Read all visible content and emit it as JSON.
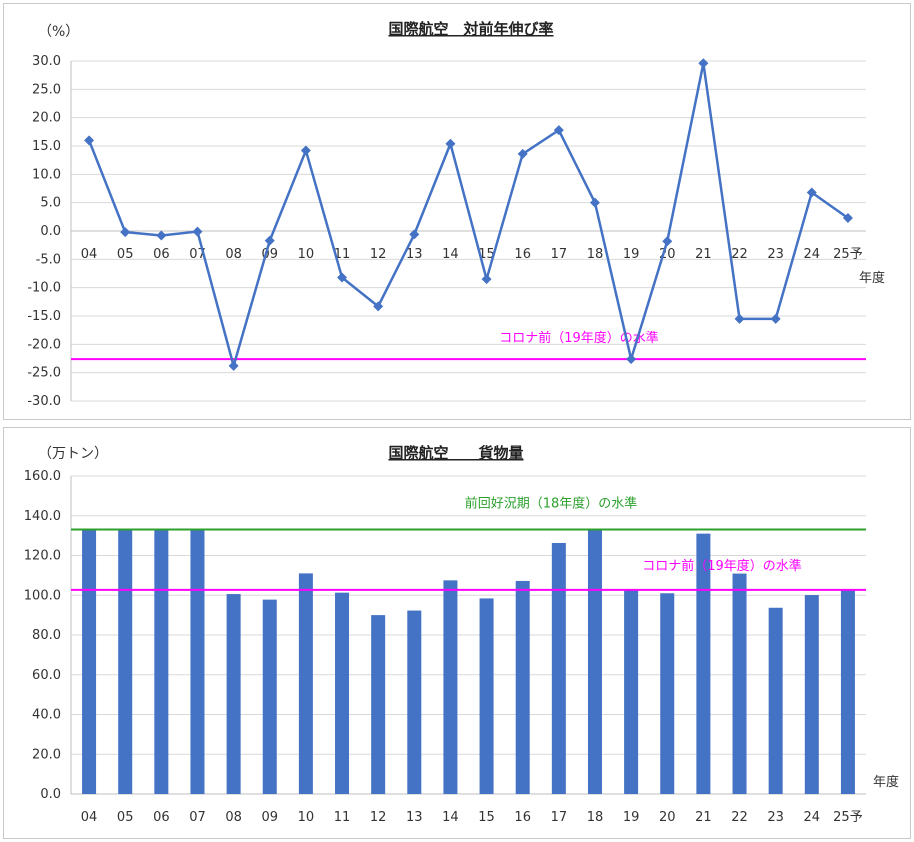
{
  "chart_data": [
    {
      "type": "line",
      "title": "国際航空　対前年伸び率",
      "ylabel": "（%）",
      "xlabel": "年度",
      "categories": [
        "04",
        "05",
        "06",
        "07",
        "08",
        "09",
        "10",
        "11",
        "12",
        "13",
        "14",
        "15",
        "16",
        "17",
        "18",
        "19",
        "20",
        "21",
        "22",
        "23",
        "24",
        "25予"
      ],
      "series": [
        {
          "values": [
            16.0,
            -0.2,
            -0.8,
            -0.1,
            -23.8,
            -1.7,
            14.2,
            -8.2,
            -13.3,
            -0.6,
            15.4,
            -8.5,
            13.6,
            17.8,
            5.0,
            -22.6,
            -1.8,
            29.6,
            -15.5,
            -15.5,
            6.8,
            2.3
          ],
          "color": "#4472c4"
        }
      ],
      "ylim": [
        -30,
        30
      ],
      "yticks": [
        "30.0",
        "25.0",
        "20.0",
        "15.0",
        "10.0",
        "5.0",
        "0.0",
        "-5.0",
        "-10.0",
        "-15.0",
        "-20.0",
        "-25.0",
        "-30.0"
      ],
      "grid": true,
      "reference_lines": [
        {
          "label": "コロナ前（19年度）の水準",
          "value": -22.6,
          "color": "#ff00ff"
        }
      ]
    },
    {
      "type": "bar",
      "title": "国際航空　　貨物量",
      "ylabel": "（万トン）",
      "xlabel": "年度",
      "categories": [
        "04",
        "05",
        "06",
        "07",
        "08",
        "09",
        "10",
        "11",
        "12",
        "13",
        "14",
        "15",
        "16",
        "17",
        "18",
        "19",
        "20",
        "21",
        "22",
        "23",
        "24",
        "25予"
      ],
      "series": [
        {
          "values": [
            133.5,
            133.2,
            132.6,
            132.6,
            100.6,
            97.8,
            111.0,
            101.3,
            90.0,
            92.3,
            107.5,
            98.4,
            107.2,
            126.3,
            133.1,
            102.7,
            101.0,
            131.0,
            110.9,
            93.7,
            100.1,
            102.5
          ],
          "color": "#4472c4"
        }
      ],
      "ylim": [
        0,
        160
      ],
      "yticks": [
        "160.0",
        "140.0",
        "120.0",
        "100.0",
        "80.0",
        "60.0",
        "40.0",
        "20.0",
        "0.0"
      ],
      "grid": true,
      "reference_lines": [
        {
          "label": "前回好況期（18年度）の水準",
          "value": 133.1,
          "color": "#2ca02c"
        },
        {
          "label": "コロナ前（19年度）の水準",
          "value": 102.7,
          "color": "#ff00ff"
        }
      ]
    }
  ]
}
